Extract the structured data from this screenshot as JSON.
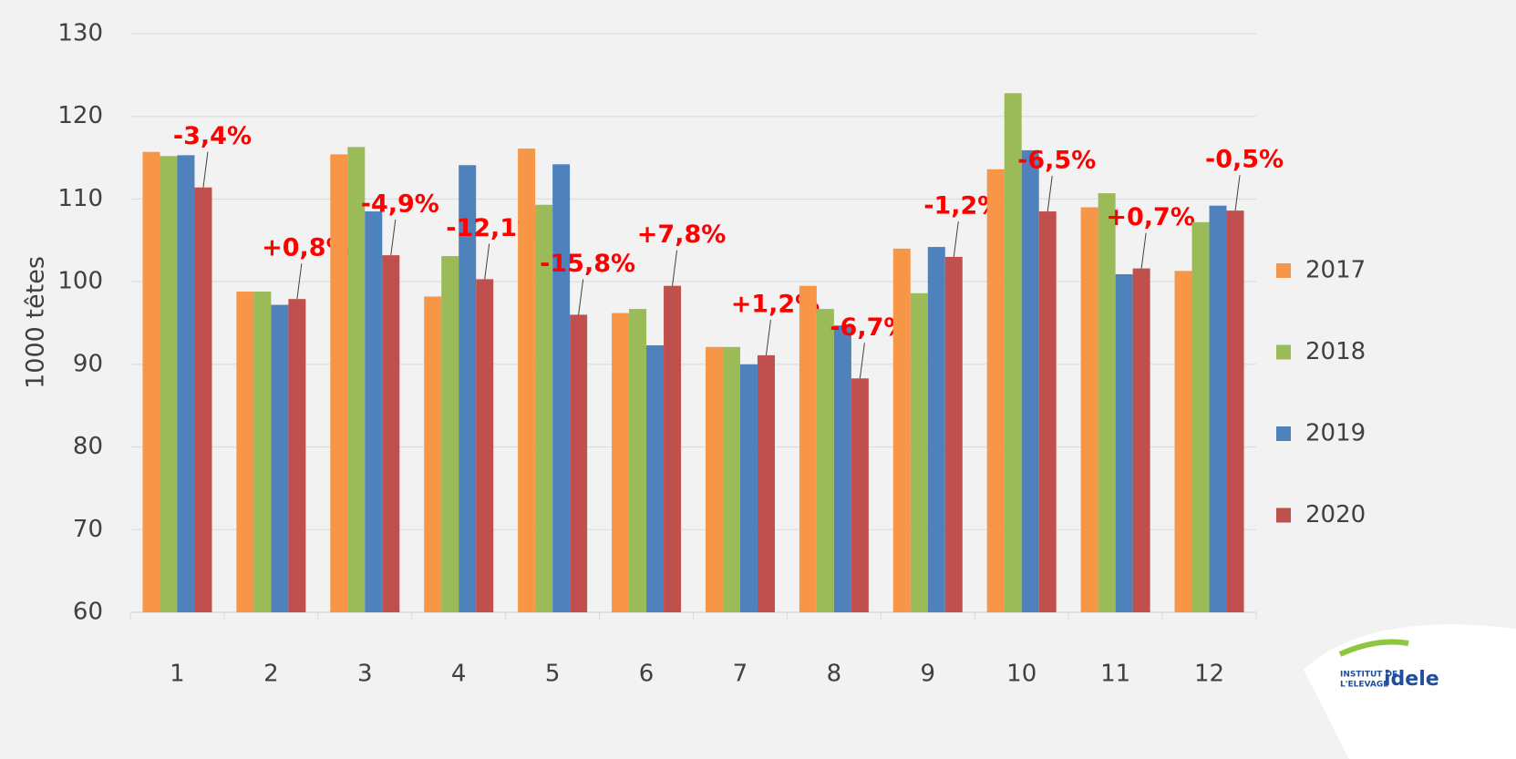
{
  "chart_data": {
    "type": "bar",
    "y_label": "1000 têtes",
    "categories": [
      "1",
      "2",
      "3",
      "4",
      "5",
      "6",
      "7",
      "8",
      "9",
      "10",
      "11",
      "12"
    ],
    "series": [
      {
        "name": "2017",
        "color": "#f79646",
        "values": [
          115.7,
          98.8,
          115.4,
          98.2,
          116.1,
          96.2,
          92.1,
          99.5,
          104.0,
          113.6,
          109.0,
          101.3
        ]
      },
      {
        "name": "2018",
        "color": "#9bbb59",
        "values": [
          115.2,
          98.8,
          116.3,
          103.1,
          109.3,
          96.7,
          92.1,
          96.7,
          98.6,
          122.8,
          110.7,
          107.2
        ]
      },
      {
        "name": "2019",
        "color": "#4f81bd",
        "values": [
          115.3,
          97.2,
          108.5,
          114.1,
          114.2,
          92.3,
          90.0,
          94.7,
          104.2,
          115.9,
          100.9,
          109.2
        ]
      },
      {
        "name": "2020",
        "color": "#c0504d",
        "values": [
          111.4,
          97.9,
          103.2,
          100.3,
          96.0,
          99.5,
          91.1,
          88.3,
          103.0,
          108.5,
          101.6,
          108.6
        ]
      }
    ],
    "annotations": [
      "-3,4%",
      "+0,8%",
      "-4,9%",
      "-12,1%",
      "-15,8%",
      "+7,8%",
      "+1,2%",
      "-6,7%",
      "-1,2%",
      "-6,5%",
      "+0,7%",
      "-0,5%"
    ],
    "ylim": [
      60,
      130
    ],
    "yticks": [
      60,
      70,
      80,
      90,
      100,
      110,
      120,
      130
    ],
    "grid": true,
    "legend": "right",
    "logo": [
      "INSTITUT DE",
      "L'ELEVAGE",
      "idele"
    ]
  }
}
